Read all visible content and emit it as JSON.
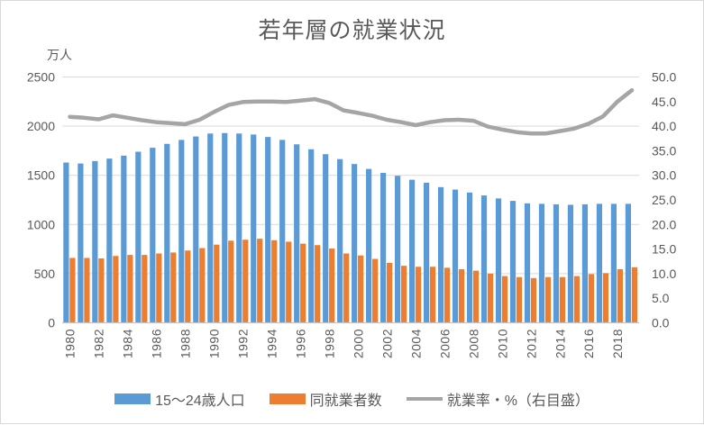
{
  "chart_data": {
    "type": "bar+line",
    "title": "若年層の就業状況",
    "legend_position": "bottom",
    "grid": true,
    "left_axis": {
      "label": "万人",
      "min": 0,
      "max": 2500,
      "step": 500,
      "ticks": [
        "0",
        "500",
        "1000",
        "1500",
        "2000",
        "2500"
      ]
    },
    "right_axis": {
      "label": "％（右目盛）",
      "min": 0,
      "max": 50,
      "step": 5,
      "ticks": [
        "0.0",
        "5.0",
        "10.0",
        "15.0",
        "20.0",
        "25.0",
        "30.0",
        "35.0",
        "40.0",
        "45.0",
        "50.0"
      ]
    },
    "x": [
      1980,
      1981,
      1982,
      1983,
      1984,
      1985,
      1986,
      1987,
      1988,
      1989,
      1990,
      1991,
      1992,
      1993,
      1994,
      1995,
      1996,
      1997,
      1998,
      1999,
      2000,
      2001,
      2002,
      2003,
      2004,
      2005,
      2006,
      2007,
      2008,
      2009,
      2010,
      2011,
      2012,
      2013,
      2014,
      2015,
      2016,
      2017,
      2018,
      2019
    ],
    "x_tick_labels": [
      "1980",
      "1982",
      "1984",
      "1986",
      "1988",
      "1990",
      "1992",
      "1994",
      "1996",
      "1998",
      "2000",
      "2002",
      "2004",
      "2006",
      "2008",
      "2010",
      "2012",
      "2014",
      "2016",
      "2018"
    ],
    "series": [
      {
        "name": "15〜24歳人口",
        "type": "bar",
        "axis": "left",
        "color": "#5B9BD5",
        "values": [
          1630,
          1620,
          1645,
          1670,
          1700,
          1740,
          1780,
          1820,
          1860,
          1895,
          1925,
          1930,
          1925,
          1915,
          1890,
          1860,
          1815,
          1765,
          1715,
          1665,
          1615,
          1565,
          1525,
          1495,
          1455,
          1425,
          1380,
          1355,
          1325,
          1295,
          1265,
          1240,
          1215,
          1210,
          1205,
          1200,
          1205,
          1210,
          1210,
          1210
        ]
      },
      {
        "name": "同就業者数",
        "type": "bar",
        "axis": "left",
        "color": "#ED7D31",
        "values": [
          660,
          660,
          655,
          680,
          690,
          690,
          705,
          715,
          735,
          760,
          795,
          835,
          845,
          855,
          840,
          825,
          805,
          790,
          755,
          705,
          685,
          650,
          610,
          580,
          570,
          570,
          560,
          545,
          530,
          500,
          475,
          465,
          455,
          465,
          465,
          475,
          495,
          505,
          545,
          565
        ]
      },
      {
        "name": "就業率・%（右目盛）",
        "type": "line",
        "axis": "right",
        "color": "#A5A5A5",
        "values": [
          41.9,
          41.7,
          41.4,
          42.2,
          41.7,
          41.2,
          40.8,
          40.6,
          40.4,
          41.3,
          42.9,
          44.3,
          44.9,
          45.0,
          45.0,
          44.9,
          45.2,
          45.5,
          44.7,
          43.2,
          42.7,
          42.1,
          41.3,
          40.8,
          40.2,
          40.8,
          41.2,
          41.3,
          41.1,
          39.9,
          39.3,
          38.8,
          38.5,
          38.5,
          39.0,
          39.5,
          40.5,
          42.0,
          45.0,
          47.3
        ]
      }
    ],
    "colors": {
      "gridline": "#D9D9D9",
      "axis_line": "#C6C6C6",
      "text": "#595959"
    }
  }
}
